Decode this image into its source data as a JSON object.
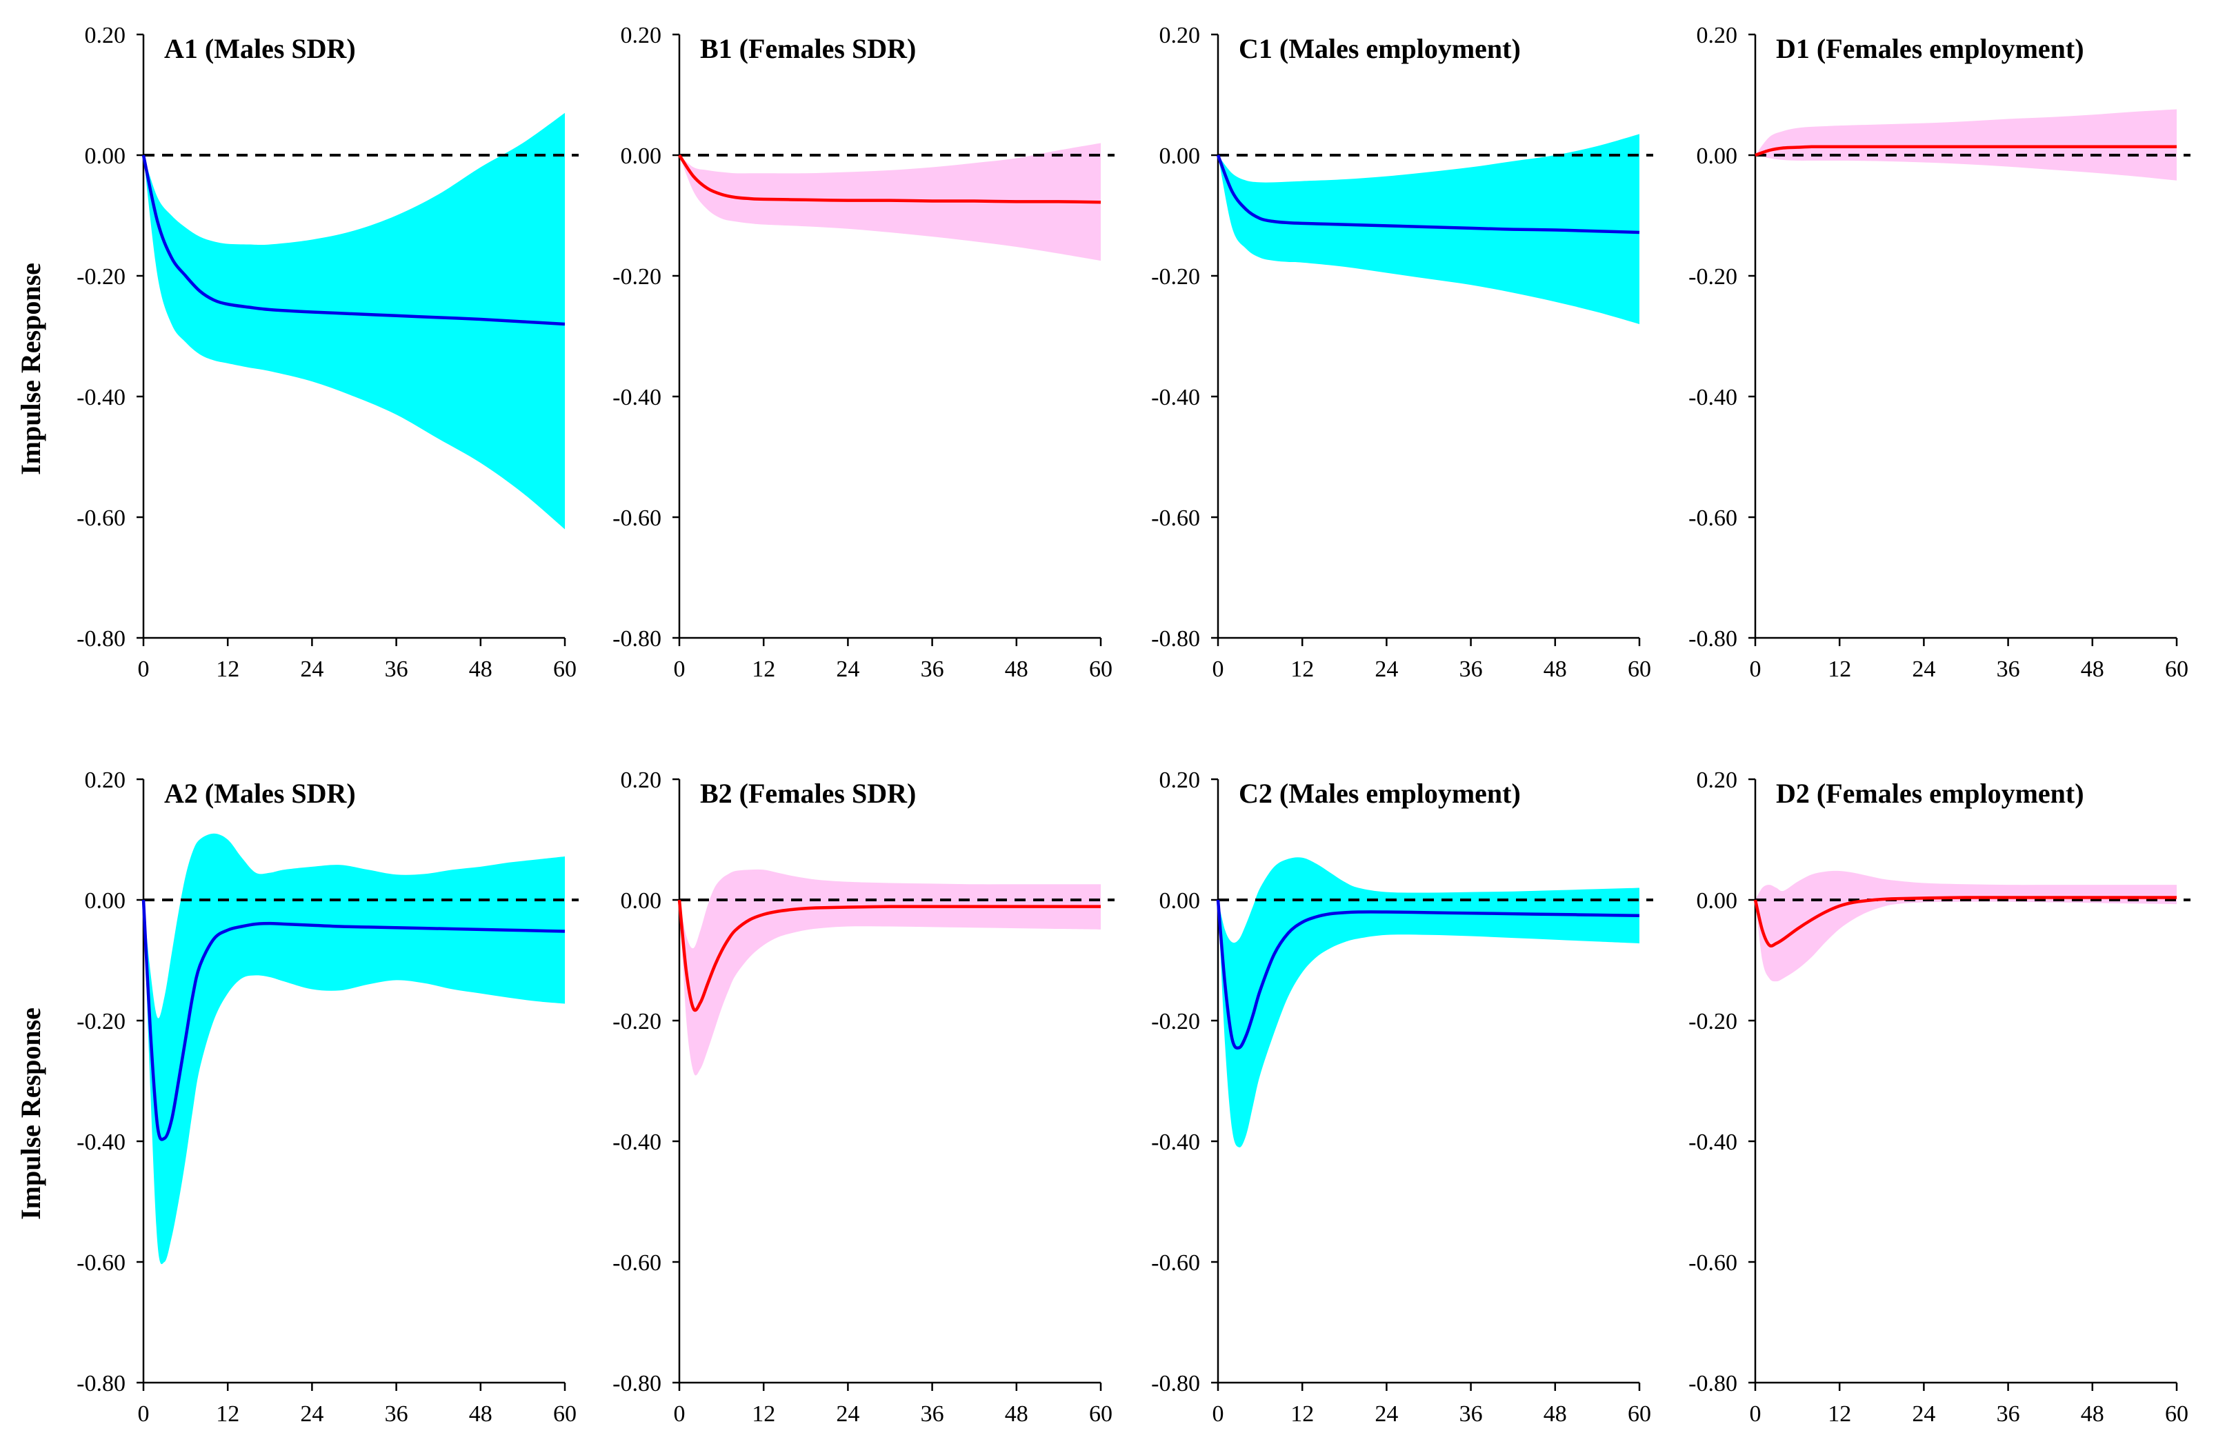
{
  "figure": {
    "ylabel": "Impulse Response",
    "colors": {
      "blue_line": "#0000e6",
      "blue_band": "#00ffff",
      "red_line": "#ff0000",
      "red_band": "#ffc8f5",
      "zero_line": "#000000",
      "axis": "#000000"
    }
  },
  "chart_data": [
    {
      "id": "A1",
      "type": "area",
      "title": "A1 (Males SDR)",
      "row": 0,
      "col": 0,
      "color_scheme": "blue",
      "xlabel": "",
      "ylabel": "Impulse Response",
      "xlim": [
        0,
        60
      ],
      "ylim": [
        -0.8,
        0.2
      ],
      "xticks": [
        0,
        12,
        24,
        36,
        48,
        60
      ],
      "yticks": [
        0.2,
        0.0,
        -0.2,
        -0.4,
        -0.6,
        -0.8
      ],
      "ytick_labels": [
        "0.20",
        "0.00",
        "-0.20",
        "-0.40",
        "-0.60",
        "-0.80"
      ],
      "x": [
        0,
        2,
        4,
        6,
        8,
        10,
        12,
        15,
        18,
        24,
        30,
        36,
        42,
        48,
        54,
        60
      ],
      "series": [
        {
          "name": "impulse_response",
          "values": [
            0.0,
            -0.11,
            -0.17,
            -0.2,
            -0.225,
            -0.24,
            -0.247,
            -0.252,
            -0.256,
            -0.26,
            -0.263,
            -0.266,
            -0.269,
            -0.272,
            -0.276,
            -0.28
          ]
        },
        {
          "name": "upper_band",
          "values": [
            0.0,
            -0.07,
            -0.1,
            -0.12,
            -0.135,
            -0.143,
            -0.147,
            -0.148,
            -0.148,
            -0.14,
            -0.125,
            -0.1,
            -0.065,
            -0.02,
            0.02,
            0.07
          ]
        },
        {
          "name": "lower_band",
          "values": [
            0.0,
            -0.2,
            -0.28,
            -0.31,
            -0.33,
            -0.34,
            -0.345,
            -0.352,
            -0.358,
            -0.375,
            -0.4,
            -0.43,
            -0.47,
            -0.51,
            -0.56,
            -0.62
          ]
        }
      ],
      "reference_line": 0.0
    },
    {
      "id": "B1",
      "type": "area",
      "title": "B1 (Females SDR)",
      "row": 0,
      "col": 1,
      "color_scheme": "red",
      "xlabel": "",
      "ylabel": "",
      "xlim": [
        0,
        60
      ],
      "ylim": [
        -0.8,
        0.2
      ],
      "xticks": [
        0,
        12,
        24,
        36,
        48,
        60
      ],
      "yticks": [
        0.2,
        0.0,
        -0.2,
        -0.4,
        -0.6,
        -0.8
      ],
      "ytick_labels": [
        "0.20",
        "0.00",
        "-0.20",
        "-0.40",
        "-0.60",
        "-0.80"
      ],
      "x": [
        0,
        2,
        4,
        6,
        8,
        10,
        12,
        18,
        24,
        30,
        36,
        42,
        48,
        54,
        60
      ],
      "series": [
        {
          "name": "impulse_response",
          "values": [
            0.0,
            -0.035,
            -0.055,
            -0.065,
            -0.07,
            -0.072,
            -0.073,
            -0.074,
            -0.075,
            -0.075,
            -0.076,
            -0.076,
            -0.077,
            -0.077,
            -0.078
          ]
        },
        {
          "name": "upper_band",
          "values": [
            0.0,
            -0.02,
            -0.025,
            -0.028,
            -0.03,
            -0.03,
            -0.03,
            -0.03,
            -0.028,
            -0.025,
            -0.02,
            -0.013,
            -0.005,
            0.008,
            0.02
          ]
        },
        {
          "name": "lower_band",
          "values": [
            0.0,
            -0.06,
            -0.09,
            -0.105,
            -0.11,
            -0.113,
            -0.115,
            -0.118,
            -0.122,
            -0.128,
            -0.135,
            -0.143,
            -0.152,
            -0.163,
            -0.175
          ]
        }
      ],
      "reference_line": 0.0
    },
    {
      "id": "C1",
      "type": "area",
      "title": "C1 (Males employment)",
      "row": 0,
      "col": 2,
      "color_scheme": "blue",
      "xlabel": "",
      "ylabel": "",
      "xlim": [
        0,
        60
      ],
      "ylim": [
        -0.8,
        0.2
      ],
      "xticks": [
        0,
        12,
        24,
        36,
        48,
        60
      ],
      "yticks": [
        0.2,
        0.0,
        -0.2,
        -0.4,
        -0.6,
        -0.8
      ],
      "ytick_labels": [
        "0.20",
        "0.00",
        "-0.20",
        "-0.40",
        "-0.60",
        "-0.80"
      ],
      "x": [
        0,
        2,
        4,
        6,
        8,
        10,
        12,
        18,
        24,
        30,
        36,
        42,
        48,
        54,
        60
      ],
      "series": [
        {
          "name": "impulse_response",
          "values": [
            0.0,
            -0.06,
            -0.09,
            -0.105,
            -0.11,
            -0.112,
            -0.113,
            -0.115,
            -0.117,
            -0.119,
            -0.121,
            -0.123,
            -0.124,
            -0.126,
            -0.128
          ]
        },
        {
          "name": "upper_band",
          "values": [
            0.0,
            -0.03,
            -0.042,
            -0.045,
            -0.045,
            -0.044,
            -0.043,
            -0.04,
            -0.035,
            -0.028,
            -0.02,
            -0.01,
            0.0,
            0.015,
            0.035
          ]
        },
        {
          "name": "lower_band",
          "values": [
            0.0,
            -0.12,
            -0.155,
            -0.17,
            -0.175,
            -0.177,
            -0.178,
            -0.185,
            -0.195,
            -0.205,
            -0.215,
            -0.228,
            -0.243,
            -0.26,
            -0.28
          ]
        }
      ],
      "reference_line": 0.0
    },
    {
      "id": "D1",
      "type": "area",
      "title": "D1 (Females employment)",
      "row": 0,
      "col": 3,
      "color_scheme": "red",
      "xlabel": "",
      "ylabel": "",
      "xlim": [
        0,
        60
      ],
      "ylim": [
        -0.8,
        0.2
      ],
      "xticks": [
        0,
        12,
        24,
        36,
        48,
        60
      ],
      "yticks": [
        0.2,
        0.0,
        -0.2,
        -0.4,
        -0.6,
        -0.8
      ],
      "ytick_labels": [
        "0.20",
        "0.00",
        "-0.20",
        "-0.40",
        "-0.60",
        "-0.80"
      ],
      "x": [
        0,
        2,
        4,
        6,
        8,
        10,
        12,
        18,
        24,
        30,
        36,
        42,
        48,
        54,
        60
      ],
      "series": [
        {
          "name": "impulse_response",
          "values": [
            0.0,
            0.008,
            0.012,
            0.013,
            0.014,
            0.014,
            0.014,
            0.014,
            0.014,
            0.014,
            0.014,
            0.014,
            0.014,
            0.014,
            0.014
          ]
        },
        {
          "name": "upper_band",
          "values": [
            0.0,
            0.03,
            0.04,
            0.045,
            0.047,
            0.048,
            0.049,
            0.051,
            0.053,
            0.056,
            0.06,
            0.063,
            0.067,
            0.072,
            0.076
          ]
        },
        {
          "name": "lower_band",
          "values": [
            0.0,
            -0.005,
            -0.008,
            -0.009,
            -0.009,
            -0.009,
            -0.009,
            -0.01,
            -0.012,
            -0.015,
            -0.019,
            -0.024,
            -0.029,
            -0.035,
            -0.042
          ]
        }
      ],
      "reference_line": 0.0
    },
    {
      "id": "A2",
      "type": "area",
      "title": "A2 (Males SDR)",
      "row": 1,
      "col": 0,
      "color_scheme": "blue",
      "xlabel": "",
      "ylabel": "Impulse Response",
      "xlim": [
        0,
        60
      ],
      "ylim": [
        -0.8,
        0.2
      ],
      "xticks": [
        0,
        12,
        24,
        36,
        48,
        60
      ],
      "yticks": [
        0.2,
        0.0,
        -0.2,
        -0.4,
        -0.6,
        -0.8
      ],
      "ytick_labels": [
        "0.20",
        "0.00",
        "-0.20",
        "-0.40",
        "-0.60",
        "-0.80"
      ],
      "x": [
        0,
        1,
        2,
        3,
        4,
        5,
        6,
        7,
        8,
        10,
        12,
        14,
        16,
        18,
        20,
        24,
        28,
        32,
        36,
        40,
        44,
        48,
        52,
        56,
        60
      ],
      "series": [
        {
          "name": "impulse_response",
          "values": [
            0.0,
            -0.22,
            -0.375,
            -0.395,
            -0.365,
            -0.3,
            -0.23,
            -0.16,
            -0.11,
            -0.065,
            -0.05,
            -0.044,
            -0.04,
            -0.039,
            -0.04,
            -0.042,
            -0.044,
            -0.045,
            -0.046,
            -0.047,
            -0.048,
            -0.049,
            -0.05,
            -0.051,
            -0.052
          ]
        },
        {
          "name": "upper_band",
          "values": [
            0.0,
            -0.12,
            -0.195,
            -0.16,
            -0.09,
            -0.02,
            0.04,
            0.08,
            0.1,
            0.11,
            0.1,
            0.07,
            0.045,
            0.045,
            0.05,
            0.055,
            0.058,
            0.05,
            0.042,
            0.043,
            0.05,
            0.055,
            0.062,
            0.067,
            0.072
          ]
        },
        {
          "name": "lower_band",
          "values": [
            0.0,
            -0.32,
            -0.57,
            -0.6,
            -0.56,
            -0.5,
            -0.43,
            -0.35,
            -0.28,
            -0.2,
            -0.155,
            -0.13,
            -0.125,
            -0.128,
            -0.135,
            -0.148,
            -0.15,
            -0.14,
            -0.133,
            -0.138,
            -0.148,
            -0.155,
            -0.162,
            -0.168,
            -0.172
          ]
        }
      ],
      "reference_line": 0.0
    },
    {
      "id": "B2",
      "type": "area",
      "title": "B2 (Females SDR)",
      "row": 1,
      "col": 1,
      "color_scheme": "red",
      "xlabel": "",
      "ylabel": "",
      "xlim": [
        0,
        60
      ],
      "ylim": [
        -0.8,
        0.2
      ],
      "xticks": [
        0,
        12,
        24,
        36,
        48,
        60
      ],
      "yticks": [
        0.2,
        0.0,
        -0.2,
        -0.4,
        -0.6,
        -0.8
      ],
      "ytick_labels": [
        "0.20",
        "0.00",
        "-0.20",
        "-0.40",
        "-0.60",
        "-0.80"
      ],
      "x": [
        0,
        1,
        2,
        3,
        4,
        5,
        6,
        7,
        8,
        10,
        12,
        14,
        16,
        18,
        20,
        24,
        30,
        36,
        42,
        48,
        54,
        60
      ],
      "series": [
        {
          "name": "impulse_response",
          "values": [
            0.0,
            -0.12,
            -0.18,
            -0.17,
            -0.14,
            -0.11,
            -0.085,
            -0.065,
            -0.05,
            -0.033,
            -0.024,
            -0.019,
            -0.016,
            -0.014,
            -0.013,
            -0.012,
            -0.011,
            -0.011,
            -0.011,
            -0.011,
            -0.011,
            -0.011
          ]
        },
        {
          "name": "upper_band",
          "values": [
            0.0,
            -0.06,
            -0.08,
            -0.05,
            -0.01,
            0.02,
            0.035,
            0.043,
            0.048,
            0.05,
            0.05,
            0.045,
            0.04,
            0.036,
            0.033,
            0.03,
            0.028,
            0.027,
            0.026,
            0.026,
            0.026,
            0.026
          ]
        },
        {
          "name": "lower_band",
          "values": [
            0.0,
            -0.2,
            -0.285,
            -0.28,
            -0.25,
            -0.215,
            -0.18,
            -0.15,
            -0.125,
            -0.095,
            -0.075,
            -0.062,
            -0.055,
            -0.05,
            -0.047,
            -0.044,
            -0.044,
            -0.045,
            -0.046,
            -0.047,
            -0.048,
            -0.049
          ]
        }
      ],
      "reference_line": 0.0
    },
    {
      "id": "C2",
      "type": "area",
      "title": "C2 (Males employment)",
      "row": 1,
      "col": 2,
      "color_scheme": "blue",
      "xlabel": "",
      "ylabel": "",
      "xlim": [
        0,
        60
      ],
      "ylim": [
        -0.8,
        0.2
      ],
      "xticks": [
        0,
        12,
        24,
        36,
        48,
        60
      ],
      "yticks": [
        0.2,
        0.0,
        -0.2,
        -0.4,
        -0.6,
        -0.8
      ],
      "ytick_labels": [
        "0.20",
        "0.00",
        "-0.20",
        "-0.40",
        "-0.60",
        "-0.80"
      ],
      "x": [
        0,
        1,
        2,
        3,
        4,
        5,
        6,
        8,
        10,
        12,
        14,
        16,
        18,
        20,
        24,
        30,
        36,
        42,
        48,
        54,
        60
      ],
      "series": [
        {
          "name": "impulse_response",
          "values": [
            0.0,
            -0.14,
            -0.23,
            -0.245,
            -0.225,
            -0.19,
            -0.15,
            -0.09,
            -0.055,
            -0.037,
            -0.028,
            -0.023,
            -0.021,
            -0.02,
            -0.02,
            -0.021,
            -0.022,
            -0.023,
            -0.024,
            -0.025,
            -0.026
          ]
        },
        {
          "name": "upper_band",
          "values": [
            0.0,
            -0.05,
            -0.07,
            -0.065,
            -0.04,
            -0.01,
            0.02,
            0.055,
            0.068,
            0.07,
            0.06,
            0.045,
            0.03,
            0.02,
            0.013,
            0.012,
            0.013,
            0.014,
            0.016,
            0.018,
            0.02
          ]
        },
        {
          "name": "lower_band",
          "values": [
            0.0,
            -0.24,
            -0.38,
            -0.41,
            -0.39,
            -0.34,
            -0.29,
            -0.22,
            -0.16,
            -0.12,
            -0.095,
            -0.08,
            -0.07,
            -0.064,
            -0.058,
            -0.058,
            -0.06,
            -0.063,
            -0.066,
            -0.069,
            -0.072
          ]
        }
      ],
      "reference_line": 0.0
    },
    {
      "id": "D2",
      "type": "area",
      "title": "D2 (Females employment)",
      "row": 1,
      "col": 3,
      "color_scheme": "red",
      "xlabel": "",
      "ylabel": "",
      "xlim": [
        0,
        60
      ],
      "ylim": [
        -0.8,
        0.2
      ],
      "xticks": [
        0,
        12,
        24,
        36,
        48,
        60
      ],
      "yticks": [
        0.2,
        0.0,
        -0.2,
        -0.4,
        -0.6,
        -0.8
      ],
      "ytick_labels": [
        "0.20",
        "0.00",
        "-0.20",
        "-0.40",
        "-0.60",
        "-0.80"
      ],
      "x": [
        0,
        1,
        2,
        3,
        4,
        6,
        8,
        10,
        12,
        14,
        16,
        18,
        20,
        24,
        30,
        36,
        42,
        48,
        54,
        60
      ],
      "series": [
        {
          "name": "impulse_response",
          "values": [
            0.0,
            -0.05,
            -0.075,
            -0.072,
            -0.065,
            -0.048,
            -0.033,
            -0.02,
            -0.01,
            -0.004,
            -0.001,
            0.001,
            0.002,
            0.003,
            0.004,
            0.004,
            0.004,
            0.004,
            0.004,
            0.004
          ]
        },
        {
          "name": "upper_band",
          "values": [
            0.0,
            0.02,
            0.025,
            0.02,
            0.015,
            0.03,
            0.042,
            0.047,
            0.048,
            0.045,
            0.04,
            0.035,
            0.032,
            0.028,
            0.026,
            0.025,
            0.025,
            0.025,
            0.025,
            0.025
          ]
        },
        {
          "name": "lower_band",
          "values": [
            0.0,
            -0.1,
            -0.13,
            -0.135,
            -0.13,
            -0.115,
            -0.095,
            -0.07,
            -0.048,
            -0.032,
            -0.02,
            -0.012,
            -0.007,
            -0.004,
            -0.003,
            -0.003,
            -0.004,
            -0.005,
            -0.006,
            -0.007
          ]
        }
      ],
      "reference_line": 0.0
    }
  ]
}
